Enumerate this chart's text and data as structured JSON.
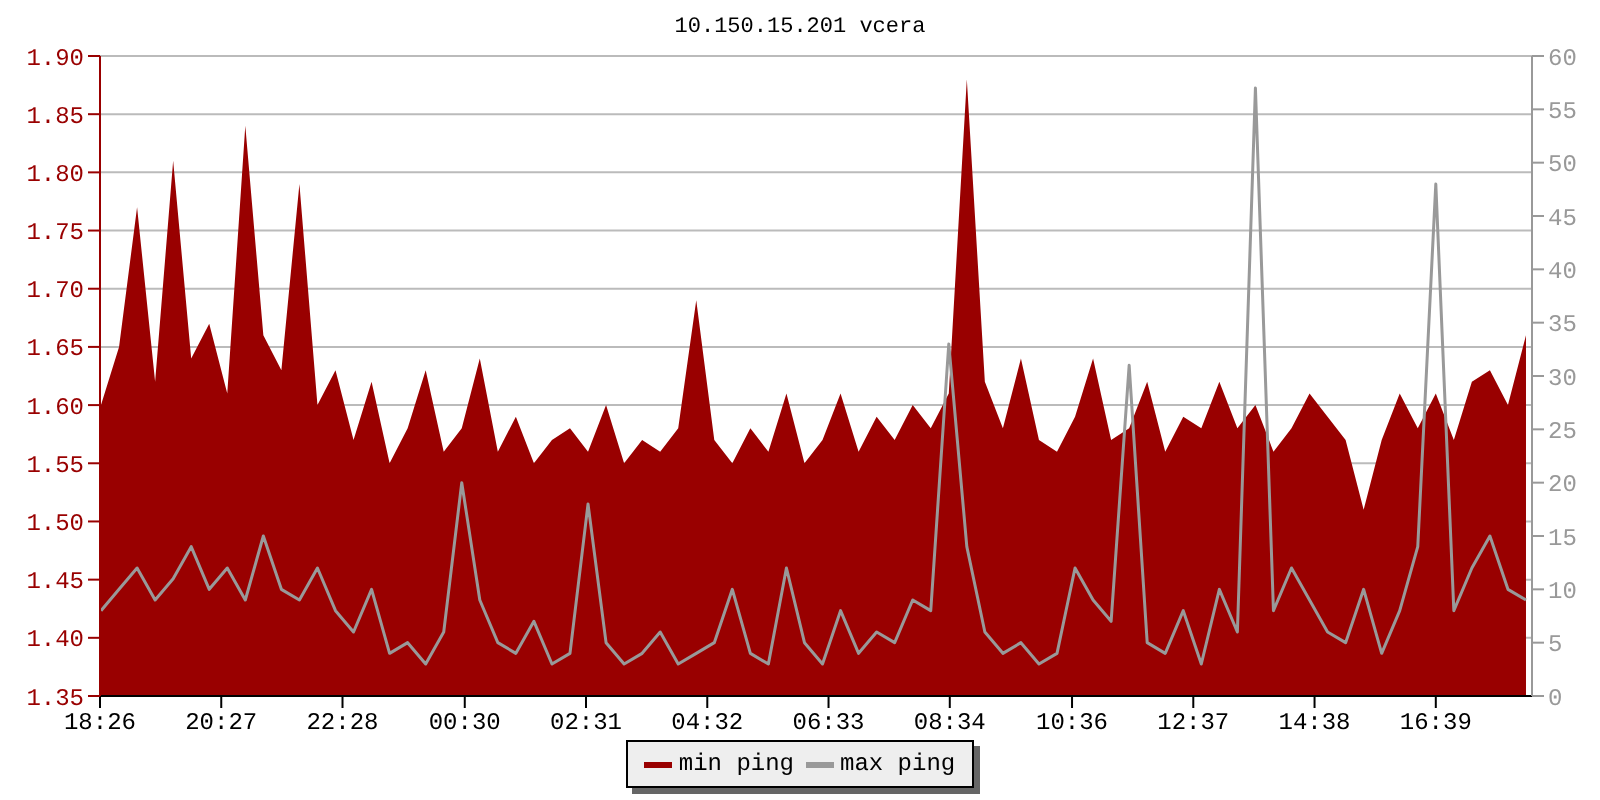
{
  "chart_data": {
    "type": "area",
    "title": "10.150.15.201 vcera",
    "x": [
      "--01-01T18:27",
      "--01-01T18:45",
      "--01-01T19:03",
      "--01-01T19:21",
      "--01-01T19:39",
      "--01-01T19:57",
      "--01-01T20:15",
      "--01-01T20:33",
      "--01-01T20:51",
      "--01-01T21:09",
      "--01-01T21:27",
      "--01-01T21:45",
      "--01-01T22:03",
      "--01-01T22:21",
      "--01-01T22:39",
      "--01-01T22:57",
      "--01-01T23:15",
      "--01-01T23:33",
      "--01-01T23:51",
      "--01-02T00:09",
      "--01-02T00:27",
      "--01-02T00:45",
      "--01-02T01:03",
      "--01-02T01:21",
      "--01-02T01:39",
      "--01-02T01:57",
      "--01-02T02:15",
      "--01-02T02:33",
      "--01-02T02:51",
      "--01-02T03:09",
      "--01-02T03:27",
      "--01-02T03:45",
      "--01-02T04:03",
      "--01-02T04:21",
      "--01-02T04:39",
      "--01-02T04:57",
      "--01-02T05:15",
      "--01-02T05:33",
      "--01-02T05:51",
      "--01-02T06:09",
      "--01-02T06:27",
      "--01-02T06:45",
      "--01-02T07:03",
      "--01-02T07:21",
      "--01-02T07:39",
      "--01-02T07:57",
      "--01-02T08:15",
      "--01-02T08:33",
      "--01-02T08:51",
      "--01-02T09:09",
      "--01-02T09:27",
      "--01-02T09:45",
      "--01-02T10:03",
      "--01-02T10:21",
      "--01-02T10:39",
      "--01-02T10:57",
      "--01-02T11:15",
      "--01-02T11:33",
      "--01-02T11:51",
      "--01-02T12:09",
      "--01-02T12:27",
      "--01-02T12:45",
      "--01-02T13:03",
      "--01-02T13:21",
      "--01-02T13:39",
      "--01-02T13:57",
      "--01-02T14:15",
      "--01-02T14:33",
      "--01-02T14:51",
      "--01-02T15:09",
      "--01-02T15:27",
      "--01-02T15:45",
      "--01-02T16:03",
      "--01-02T16:21",
      "--01-02T16:39",
      "--01-02T16:57",
      "--01-02T17:15",
      "--01-02T17:33",
      "--01-02T17:51",
      "--01-02T18:09"
    ],
    "series": [
      {
        "name": "min ping",
        "color": "#990000",
        "values": [
          1.6,
          1.65,
          1.77,
          1.62,
          1.81,
          1.64,
          1.67,
          1.61,
          1.84,
          1.66,
          1.63,
          1.79,
          1.6,
          1.63,
          1.57,
          1.62,
          1.55,
          1.58,
          1.63,
          1.56,
          1.58,
          1.64,
          1.56,
          1.59,
          1.55,
          1.57,
          1.58,
          1.56,
          1.6,
          1.55,
          1.57,
          1.56,
          1.58,
          1.69,
          1.57,
          1.55,
          1.58,
          1.56,
          1.61,
          1.55,
          1.57,
          1.61,
          1.56,
          1.59,
          1.57,
          1.6,
          1.58,
          1.61,
          1.88,
          1.62,
          1.58,
          1.64,
          1.57,
          1.56,
          1.59,
          1.64,
          1.57,
          1.58,
          1.62,
          1.56,
          1.59,
          1.58,
          1.62,
          1.58,
          1.6,
          1.56,
          1.58,
          1.61,
          1.59,
          1.57,
          1.51,
          1.57,
          1.61,
          1.58,
          1.61,
          1.57,
          1.62,
          1.63,
          1.6,
          1.66
        ]
      },
      {
        "name": "max ping",
        "type": "line",
        "axis": "y2",
        "color": "#999999",
        "values": [
          8,
          10,
          12,
          9,
          11,
          14,
          10,
          12,
          9,
          15,
          10,
          9,
          12,
          8,
          6,
          10,
          4,
          5,
          3,
          6,
          20,
          9,
          5,
          4,
          7,
          3,
          4,
          18,
          5,
          3,
          4,
          6,
          3,
          4,
          5,
          10,
          4,
          3,
          12,
          5,
          3,
          8,
          4,
          6,
          5,
          9,
          8,
          33,
          14,
          6,
          4,
          5,
          3,
          4,
          12,
          9,
          7,
          31,
          5,
          4,
          8,
          3,
          10,
          6,
          57,
          8,
          12,
          9,
          6,
          5,
          10,
          4,
          8,
          14,
          48,
          8,
          12,
          15,
          10,
          9
        ]
      }
    ],
    "xlim": [
      "--01-01T18:26",
      "--01-02T18:15"
    ],
    "xticks": [
      {
        "value": "--01-01T18:26",
        "label": "18:26"
      },
      {
        "value": "--01-01T20:27",
        "label": "20:27"
      },
      {
        "value": "--01-01T22:28",
        "label": "22:28"
      },
      {
        "value": "--01-02T00:30",
        "label": "00:30"
      },
      {
        "value": "--01-02T02:31",
        "label": "02:31"
      },
      {
        "value": "--01-02T04:32",
        "label": "04:32"
      },
      {
        "value": "--01-02T06:33",
        "label": "06:33"
      },
      {
        "value": "--01-02T08:34",
        "label": "08:34"
      },
      {
        "value": "--01-02T10:36",
        "label": "10:36"
      },
      {
        "value": "--01-02T12:37",
        "label": "12:37"
      },
      {
        "value": "--01-02T14:38",
        "label": "14:38"
      },
      {
        "value": "--01-02T16:39",
        "label": "16:39"
      }
    ],
    "ylim": [
      1.35,
      1.9
    ],
    "yticks": [
      {
        "value": 1.35,
        "label": "1.35"
      },
      {
        "value": 1.4,
        "label": "1.40"
      },
      {
        "value": 1.45,
        "label": "1.45"
      },
      {
        "value": 1.5,
        "label": "1.50"
      },
      {
        "value": 1.55,
        "label": "1.55"
      },
      {
        "value": 1.6,
        "label": "1.60"
      },
      {
        "value": 1.65,
        "label": "1.65"
      },
      {
        "value": 1.7,
        "label": "1.70"
      },
      {
        "value": 1.75,
        "label": "1.75"
      },
      {
        "value": 1.8,
        "label": "1.80"
      },
      {
        "value": 1.85,
        "label": "1.85"
      },
      {
        "value": 1.9,
        "label": "1.90"
      }
    ],
    "y2lim": [
      0,
      60
    ],
    "y2ticks": [
      0,
      5,
      10,
      15,
      20,
      25,
      30,
      35,
      40,
      45,
      50,
      55,
      60
    ],
    "grid": "y",
    "legend": "bottom"
  }
}
